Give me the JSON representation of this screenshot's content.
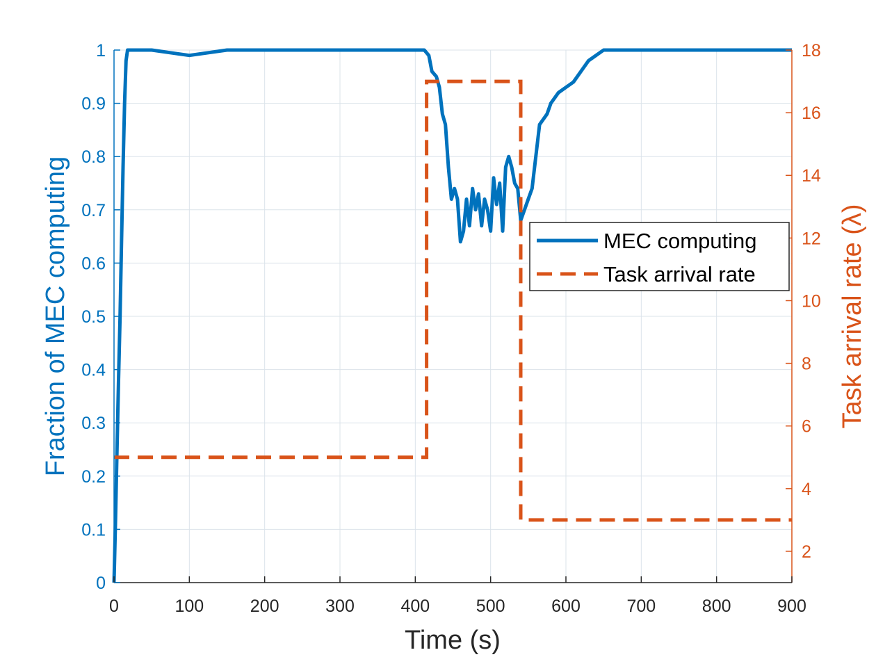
{
  "colors": {
    "left_axis": "#0072BD",
    "right_axis": "#D95319",
    "x_axis": "#262626",
    "grid": "#dbe3ea"
  },
  "chart_data": {
    "type": "line",
    "title": "",
    "xlabel": "Time (s)",
    "ylabel": "Fraction of MEC computing",
    "y2label": "Task arrival rate (λ)",
    "xlim": [
      0,
      900
    ],
    "ylim": [
      0,
      1
    ],
    "y2lim": [
      1,
      18
    ],
    "grid": true,
    "legend_position": "right",
    "x_ticks": [
      "0",
      "100",
      "200",
      "300",
      "400",
      "500",
      "600",
      "700",
      "800",
      "900"
    ],
    "y_ticks": [
      "0",
      "0.1",
      "0.2",
      "0.3",
      "0.4",
      "0.5",
      "0.6",
      "0.7",
      "0.8",
      "0.9",
      "1"
    ],
    "y2_ticks": [
      "2",
      "4",
      "6",
      "8",
      "10",
      "12",
      "14",
      "16",
      "18"
    ],
    "series": [
      {
        "name": "MEC computing",
        "axis": "left",
        "style": "solid",
        "x": [
          0,
          2,
          4,
          6,
          8,
          10,
          12,
          14,
          16,
          18,
          50,
          100,
          150,
          200,
          250,
          300,
          350,
          400,
          412,
          418,
          422,
          428,
          432,
          436,
          440,
          444,
          448,
          452,
          456,
          460,
          464,
          468,
          472,
          476,
          480,
          484,
          488,
          492,
          496,
          500,
          504,
          508,
          512,
          516,
          520,
          524,
          528,
          532,
          536,
          540,
          545,
          550,
          555,
          560,
          565,
          570,
          575,
          580,
          590,
          600,
          610,
          620,
          630,
          640,
          650,
          700,
          750,
          800,
          850,
          900
        ],
        "y": [
          0.0,
          0.12,
          0.25,
          0.38,
          0.5,
          0.64,
          0.78,
          0.9,
          0.98,
          1.0,
          1.0,
          0.99,
          1.0,
          1.0,
          1.0,
          1.0,
          1.0,
          1.0,
          1.0,
          0.99,
          0.96,
          0.95,
          0.93,
          0.88,
          0.86,
          0.78,
          0.72,
          0.74,
          0.72,
          0.64,
          0.66,
          0.72,
          0.67,
          0.74,
          0.7,
          0.73,
          0.67,
          0.72,
          0.7,
          0.66,
          0.76,
          0.71,
          0.75,
          0.66,
          0.78,
          0.8,
          0.78,
          0.75,
          0.74,
          0.68,
          0.7,
          0.72,
          0.74,
          0.8,
          0.86,
          0.87,
          0.88,
          0.9,
          0.92,
          0.93,
          0.94,
          0.96,
          0.98,
          0.99,
          1.0,
          1.0,
          1.0,
          1.0,
          1.0,
          1.0
        ]
      },
      {
        "name": "Task arrival rate",
        "axis": "right",
        "style": "dashed",
        "x": [
          0,
          415,
          415,
          540,
          540,
          900
        ],
        "y": [
          5,
          5,
          17,
          17,
          3,
          3
        ]
      }
    ]
  }
}
